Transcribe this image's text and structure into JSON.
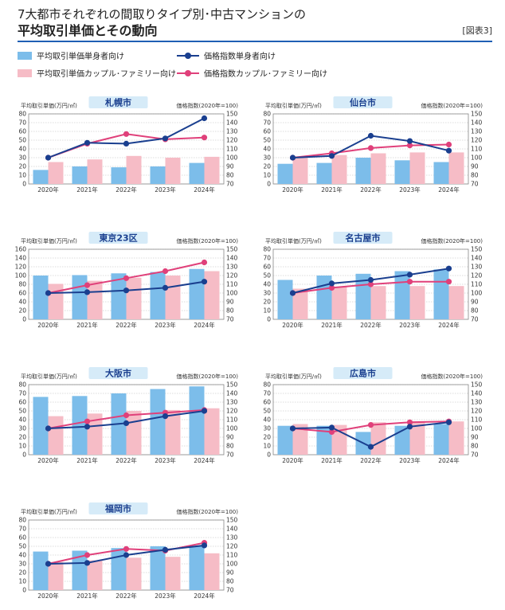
{
  "header": {
    "title_line1": "7大都市それぞれの間取りタイプ別･中古マンションの",
    "title_line2": "平均取引単価とその動向",
    "figure_label": "[図表3]"
  },
  "legend": {
    "items": [
      {
        "label": "平均取引単価単身者向け",
        "kind": "bar",
        "color": "#7cbdea"
      },
      {
        "label": "平均取引単価カップル･ファミリー向け",
        "kind": "bar",
        "color": "#f6bcc6"
      },
      {
        "label": "価格指数単身者向け",
        "kind": "line",
        "color": "#1a3f8f"
      },
      {
        "label": "価格指数カップル･ファミリー向け",
        "kind": "line",
        "color": "#e0407a"
      }
    ]
  },
  "colors": {
    "single_bar": "#7cbdea",
    "family_bar": "#f6bcc6",
    "single_line": "#1a3f8f",
    "family_line": "#e0407a",
    "city_badge_bg": "#d6ebf8",
    "city_badge_text": "#1a3f8f",
    "grid": "#bbbbbb"
  },
  "chart_data": [
    {
      "type": "bar",
      "city": "札幌市",
      "categories": [
        "2020年",
        "2021年",
        "2022年",
        "2023年",
        "2024年"
      ],
      "left_axis_label": "平均取引単価(万円/㎡)",
      "right_axis_label": "価格指数(2020年=100)",
      "left_ylim": [
        0,
        80
      ],
      "left_ticks": [
        "0",
        "10",
        "20",
        "30",
        "40",
        "50",
        "60",
        "70",
        "80"
      ],
      "right_ylim": [
        70,
        150
      ],
      "right_ticks": [
        "70",
        "80",
        "90",
        "100",
        "110",
        "120",
        "130",
        "140",
        "150"
      ],
      "bars": [
        {
          "name": "平均取引単価単身者向け",
          "values": [
            16,
            20,
            19,
            20,
            24
          ]
        },
        {
          "name": "平均取引単価カップル･ファミリー向け",
          "values": [
            25,
            28,
            32,
            30,
            31
          ]
        }
      ],
      "lines": [
        {
          "name": "価格指数単身者向け",
          "values": [
            100,
            117,
            116,
            122,
            145
          ]
        },
        {
          "name": "価格指数カップル･ファミリー向け",
          "values": [
            100,
            116,
            127,
            121,
            123
          ]
        }
      ]
    },
    {
      "type": "bar",
      "city": "仙台市",
      "categories": [
        "2020年",
        "2021年",
        "2022年",
        "2023年",
        "2024年"
      ],
      "left_axis_label": "平均取引単価(万円/㎡)",
      "right_axis_label": "価格指数(2020年=100)",
      "left_ylim": [
        0,
        80
      ],
      "left_ticks": [
        "0",
        "10",
        "20",
        "30",
        "40",
        "50",
        "60",
        "70",
        "80"
      ],
      "right_ylim": [
        70,
        150
      ],
      "right_ticks": [
        "70",
        "80",
        "90",
        "100",
        "110",
        "120",
        "130",
        "140",
        "150"
      ],
      "bars": [
        {
          "name": "平均取引単価単身者向け",
          "values": [
            23,
            24,
            30,
            27,
            25
          ]
        },
        {
          "name": "平均取引単価カップル･ファミリー向け",
          "values": [
            31,
            33,
            35,
            36,
            36
          ]
        }
      ],
      "lines": [
        {
          "name": "価格指数単身者向け",
          "values": [
            100,
            102,
            125,
            119,
            108
          ]
        },
        {
          "name": "価格指数カップル･ファミリー向け",
          "values": [
            100,
            105,
            111,
            114,
            115
          ]
        }
      ]
    },
    {
      "type": "bar",
      "city": "東京23区",
      "categories": [
        "2020年",
        "2021年",
        "2022年",
        "2023年",
        "2024年"
      ],
      "left_axis_label": "平均取引単価(万円/㎡)",
      "right_axis_label": "価格指数(2020年=100)",
      "left_ylim": [
        0,
        160
      ],
      "left_ticks": [
        "0",
        "20",
        "40",
        "60",
        "80",
        "100",
        "120",
        "140",
        "160"
      ],
      "right_ylim": [
        70,
        150
      ],
      "right_ticks": [
        "70",
        "80",
        "90",
        "100",
        "110",
        "120",
        "130",
        "140",
        "150"
      ],
      "bars": [
        {
          "name": "平均取引単価単身者向け",
          "values": [
            100,
            101,
            105,
            108,
            115
          ]
        },
        {
          "name": "平均取引単価カップル･ファミリー向け",
          "values": [
            81,
            88,
            95,
            100,
            110
          ]
        }
      ],
      "lines": [
        {
          "name": "価格指数単身者向け",
          "values": [
            100,
            101,
            103,
            106,
            113
          ]
        },
        {
          "name": "価格指数カップル･ファミリー向け",
          "values": [
            100,
            109,
            117,
            125,
            135
          ]
        }
      ]
    },
    {
      "type": "bar",
      "city": "名古屋市",
      "categories": [
        "2020年",
        "2021年",
        "2022年",
        "2023年",
        "2024年"
      ],
      "left_axis_label": "平均取引単価(万円/㎡)",
      "right_axis_label": "価格指数(2020年=100)",
      "left_ylim": [
        0,
        80
      ],
      "left_ticks": [
        "0",
        "10",
        "20",
        "30",
        "40",
        "50",
        "60",
        "70",
        "80"
      ],
      "right_ylim": [
        70,
        150
      ],
      "right_ticks": [
        "70",
        "80",
        "90",
        "100",
        "110",
        "120",
        "130",
        "140",
        "150"
      ],
      "bars": [
        {
          "name": "平均取引単価単身者向け",
          "values": [
            45,
            50,
            52,
            55,
            57
          ]
        },
        {
          "name": "平均取引単価カップル･ファミリー向け",
          "values": [
            35,
            37,
            38,
            38,
            38
          ]
        }
      ],
      "lines": [
        {
          "name": "価格指数単身者向け",
          "values": [
            100,
            111,
            115,
            121,
            128
          ]
        },
        {
          "name": "価格指数カップル･ファミリー向け",
          "values": [
            100,
            106,
            110,
            113,
            113
          ]
        }
      ]
    },
    {
      "type": "bar",
      "city": "大阪市",
      "categories": [
        "2020年",
        "2021年",
        "2022年",
        "2023年",
        "2024年"
      ],
      "left_axis_label": "平均取引単価(万円/㎡)",
      "right_axis_label": "価格指数(2020年=100)",
      "left_ylim": [
        0,
        80
      ],
      "left_ticks": [
        "0",
        "10",
        "20",
        "30",
        "40",
        "50",
        "60",
        "70",
        "80"
      ],
      "right_ylim": [
        70,
        150
      ],
      "right_ticks": [
        "70",
        "80",
        "90",
        "100",
        "110",
        "120",
        "130",
        "140",
        "150"
      ],
      "bars": [
        {
          "name": "平均取引単価単身者向け",
          "values": [
            66,
            67,
            70,
            75,
            78
          ]
        },
        {
          "name": "平均取引単価カップル･ファミリー向け",
          "values": [
            44,
            47,
            50,
            51,
            53
          ]
        }
      ],
      "lines": [
        {
          "name": "価格指数単身者向け",
          "values": [
            100,
            102,
            106,
            114,
            120
          ]
        },
        {
          "name": "価格指数カップル･ファミリー向け",
          "values": [
            100,
            108,
            115,
            118,
            121
          ]
        }
      ]
    },
    {
      "type": "bar",
      "city": "広島市",
      "categories": [
        "2020年",
        "2021年",
        "2022年",
        "2023年",
        "2024年"
      ],
      "left_axis_label": "平均取引単価(万円/㎡)",
      "right_axis_label": "価格指数(2020年=100)",
      "left_ylim": [
        0,
        80
      ],
      "left_ticks": [
        "0",
        "10",
        "20",
        "30",
        "40",
        "50",
        "60",
        "70",
        "80"
      ],
      "right_ylim": [
        70,
        150
      ],
      "right_ticks": [
        "70",
        "80",
        "90",
        "100",
        "110",
        "120",
        "130",
        "140",
        "150"
      ],
      "bars": [
        {
          "name": "平均取引単価単身者向け",
          "values": [
            33,
            33,
            26,
            33,
            35
          ]
        },
        {
          "name": "平均取引単価カップル･ファミリー向け",
          "values": [
            35,
            34,
            37,
            38,
            38
          ]
        }
      ],
      "lines": [
        {
          "name": "価格指数単身者向け",
          "values": [
            100,
            101,
            79,
            102,
            107
          ]
        },
        {
          "name": "価格指数カップル･ファミリー向け",
          "values": [
            100,
            96,
            104,
            107,
            108
          ]
        }
      ]
    },
    {
      "type": "bar",
      "city": "福岡市",
      "categories": [
        "2020年",
        "2021年",
        "2022年",
        "2023年",
        "2024年"
      ],
      "left_axis_label": "平均取引単価(万円/㎡)",
      "right_axis_label": "価格指数(2020年=100)",
      "left_ylim": [
        0,
        80
      ],
      "left_ticks": [
        "0",
        "10",
        "20",
        "30",
        "40",
        "50",
        "60",
        "70",
        "80"
      ],
      "right_ylim": [
        70,
        150
      ],
      "right_ticks": [
        "70",
        "80",
        "90",
        "100",
        "110",
        "120",
        "130",
        "140",
        "150"
      ],
      "bars": [
        {
          "name": "平均取引単価単身者向け",
          "values": [
            44,
            45,
            48,
            50,
            50
          ]
        },
        {
          "name": "平均取引単価カップル･ファミリー向け",
          "values": [
            32,
            34,
            37,
            38,
            42
          ]
        }
      ],
      "lines": [
        {
          "name": "価格指数単身者向け",
          "values": [
            100,
            101,
            110,
            116,
            121
          ]
        },
        {
          "name": "価格指数カップル･ファミリー向け",
          "values": [
            100,
            110,
            117,
            115,
            124
          ]
        }
      ]
    }
  ]
}
